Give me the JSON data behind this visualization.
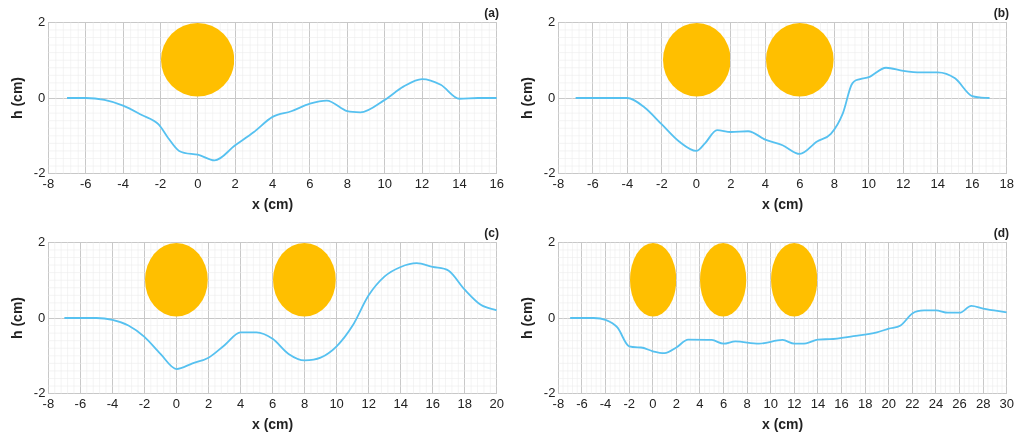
{
  "chart_data": [
    {
      "type": "line",
      "title": "(a)",
      "xlabel": "x (cm)",
      "ylabel": "h (cm)",
      "xlim": [
        -8,
        16
      ],
      "xticks": [
        -8,
        -6,
        -4,
        -2,
        0,
        2,
        4,
        6,
        8,
        10,
        12,
        14,
        16
      ],
      "ylim": [
        -2,
        2
      ],
      "yticks": [
        -2,
        0,
        2
      ],
      "grid": true,
      "marker": "none",
      "line_style": "solid",
      "legend": false,
      "series": [
        {
          "color": "#56c1f0",
          "x": [
            -7,
            -6,
            -5,
            -4,
            -3,
            -2.1,
            -1.6,
            -1,
            0,
            0.9,
            2,
            3,
            4,
            5,
            6,
            6.9,
            8,
            8.7,
            10,
            11,
            12,
            13,
            14,
            15,
            16
          ],
          "values": [
            0,
            0,
            -0.05,
            -0.2,
            -0.45,
            -0.7,
            -1.05,
            -1.4,
            -1.5,
            -1.65,
            -1.25,
            -0.9,
            -0.5,
            -0.35,
            -0.15,
            -0.07,
            -0.35,
            -0.38,
            -0.05,
            0.3,
            0.5,
            0.35,
            -0.02,
            0,
            0
          ]
        }
      ]
    },
    {
      "type": "line",
      "title": "(b)",
      "xlabel": "x (cm)",
      "ylabel": "h (cm)",
      "xlim": [
        -8,
        18
      ],
      "xticks": [
        -8,
        -6,
        -4,
        -2,
        0,
        2,
        4,
        6,
        8,
        10,
        12,
        14,
        16,
        18
      ],
      "ylim": [
        -2,
        2
      ],
      "yticks": [
        -2,
        0,
        2
      ],
      "grid": true,
      "marker": "none",
      "line_style": "solid",
      "legend": false,
      "series": [
        {
          "color": "#56c1f0",
          "x": [
            -7,
            -4,
            -3,
            -2,
            -1,
            0,
            0.5,
            1.2,
            2,
            3,
            4,
            5,
            6,
            7,
            7.8,
            8.5,
            9,
            9.5,
            10,
            11,
            12,
            13,
            14,
            15,
            16,
            17
          ],
          "values": [
            0,
            0,
            -0.25,
            -0.7,
            -1.15,
            -1.4,
            -1.2,
            -0.85,
            -0.9,
            -0.88,
            -1.1,
            -1.25,
            -1.48,
            -1.15,
            -0.95,
            -0.4,
            0.35,
            0.5,
            0.55,
            0.8,
            0.72,
            0.68,
            0.68,
            0.52,
            0.05,
            0
          ]
        }
      ]
    },
    {
      "type": "line",
      "title": "(c)",
      "xlabel": "x (cm)",
      "ylabel": "h (cm)",
      "xlim": [
        -8,
        20
      ],
      "xticks": [
        -8,
        -6,
        -4,
        -2,
        0,
        2,
        4,
        6,
        8,
        10,
        12,
        14,
        16,
        18,
        20
      ],
      "ylim": [
        -2,
        2
      ],
      "yticks": [
        -2,
        0,
        2
      ],
      "grid": true,
      "marker": "none",
      "line_style": "solid",
      "legend": false,
      "series": [
        {
          "color": "#56c1f0",
          "x": [
            -7,
            -5,
            -4,
            -3,
            -2,
            -1,
            0,
            1,
            2,
            3,
            4,
            5,
            6,
            7,
            8,
            9,
            10,
            11,
            12,
            13,
            14,
            15,
            16,
            17,
            18,
            19,
            20
          ],
          "values": [
            0,
            0,
            -0.05,
            -0.2,
            -0.5,
            -0.95,
            -1.35,
            -1.2,
            -1.05,
            -0.72,
            -0.38,
            -0.38,
            -0.55,
            -0.95,
            -1.12,
            -1.05,
            -0.75,
            -0.2,
            0.6,
            1.1,
            1.35,
            1.45,
            1.35,
            1.25,
            0.75,
            0.35,
            0.2
          ]
        }
      ]
    },
    {
      "type": "line",
      "title": "(d)",
      "xlabel": "x (cm)",
      "ylabel": "h (cm)",
      "xlim": [
        -8,
        30
      ],
      "xticks": [
        -8,
        -6,
        -4,
        -2,
        0,
        2,
        4,
        6,
        8,
        10,
        12,
        14,
        16,
        18,
        20,
        22,
        24,
        26,
        28,
        30
      ],
      "ylim": [
        -2,
        2
      ],
      "yticks": [
        -2,
        0,
        2
      ],
      "grid": true,
      "marker": "none",
      "line_style": "solid",
      "legend": false,
      "series": [
        {
          "color": "#56c1f0",
          "x": [
            -7,
            -5,
            -4,
            -3,
            -2,
            -1,
            0,
            1,
            2,
            3,
            5,
            6,
            7,
            9,
            11,
            12,
            13,
            14,
            15,
            17,
            19,
            20,
            21,
            22,
            23,
            24,
            25,
            26,
            27,
            28,
            30
          ],
          "values": [
            0,
            0,
            -0.05,
            -0.25,
            -0.75,
            -0.78,
            -0.88,
            -0.93,
            -0.78,
            -0.57,
            -0.58,
            -0.68,
            -0.62,
            -0.68,
            -0.58,
            -0.68,
            -0.67,
            -0.57,
            -0.56,
            -0.48,
            -0.38,
            -0.28,
            -0.2,
            0.12,
            0.2,
            0.2,
            0.14,
            0.14,
            0.32,
            0.25,
            0.15
          ]
        }
      ]
    }
  ]
}
